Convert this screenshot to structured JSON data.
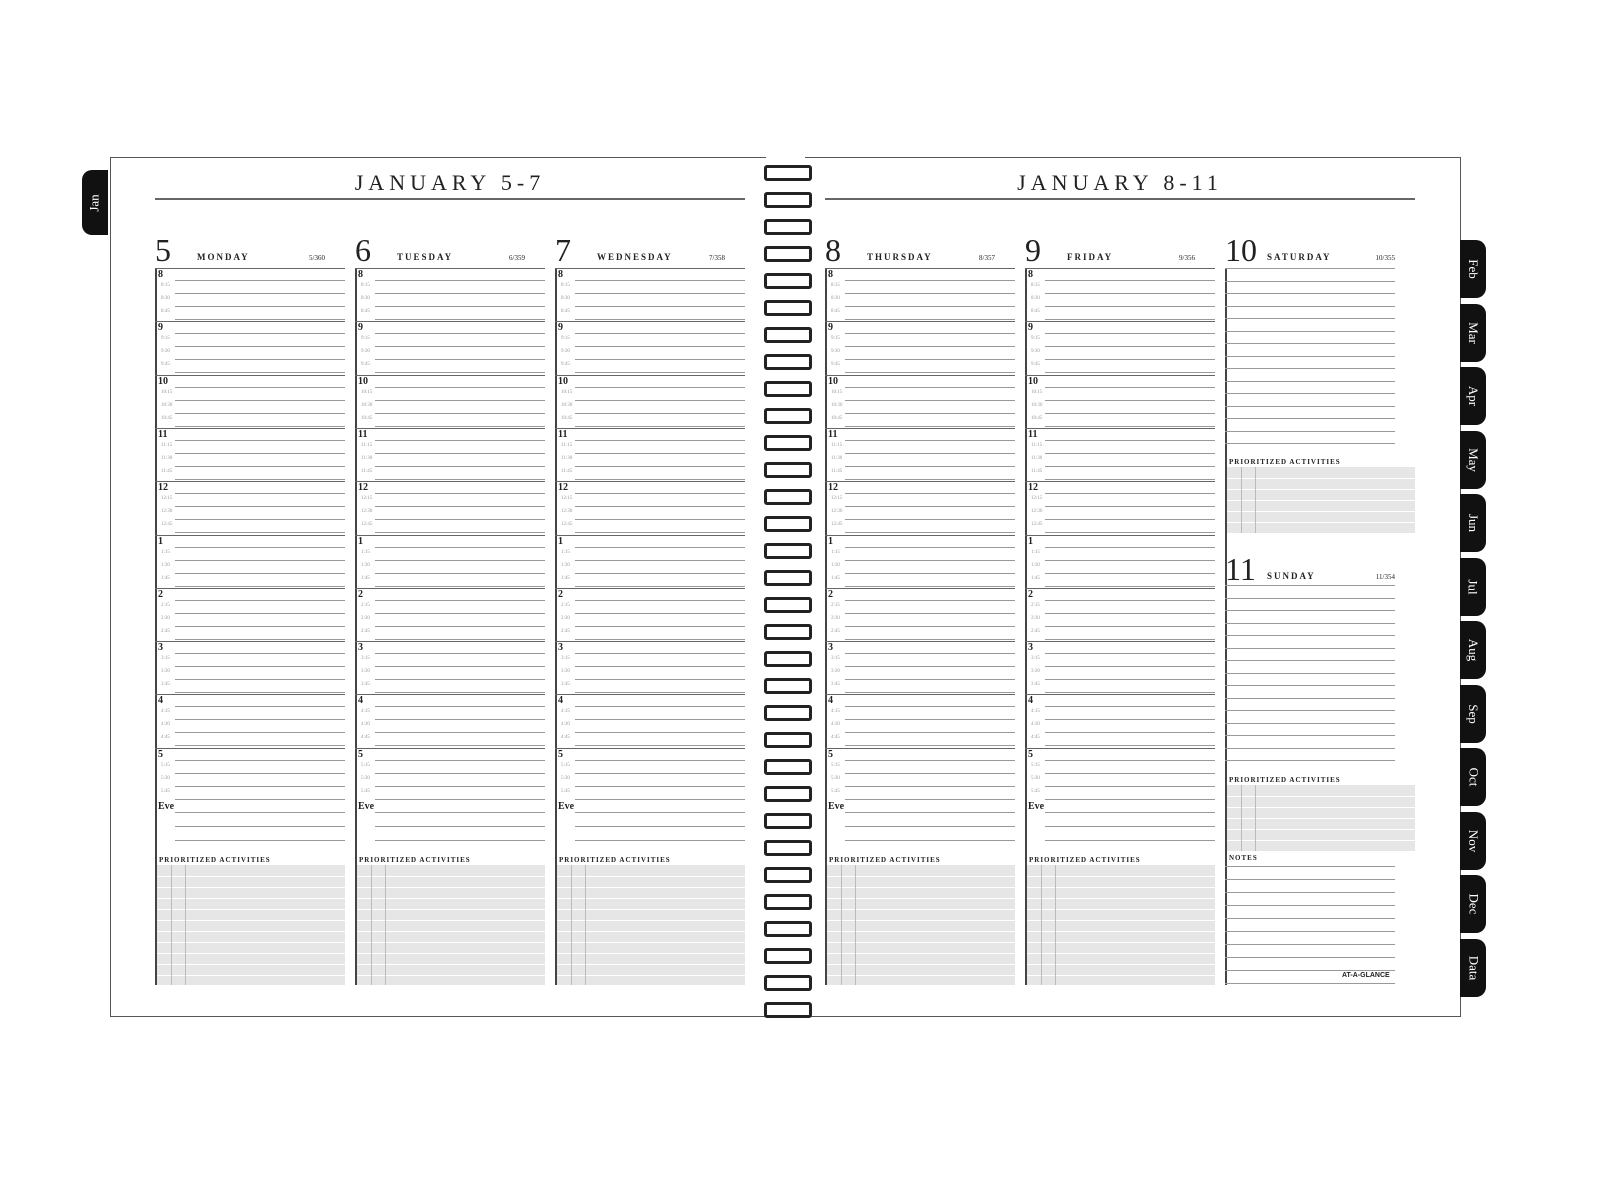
{
  "left_page": {
    "title": "JANUARY 5-7"
  },
  "right_page": {
    "title": "JANUARY 8-11"
  },
  "days": [
    {
      "num": "5",
      "name": "Monday",
      "count": "5/360"
    },
    {
      "num": "6",
      "name": "Tuesday",
      "count": "6/359"
    },
    {
      "num": "7",
      "name": "Wednesday",
      "count": "7/358"
    },
    {
      "num": "8",
      "name": "Thursday",
      "count": "8/357"
    },
    {
      "num": "9",
      "name": "Friday",
      "count": "9/356"
    },
    {
      "num": "10",
      "name": "Saturday",
      "count": "10/355"
    },
    {
      "num": "11",
      "name": "Sunday",
      "count": "11/354"
    }
  ],
  "hours": [
    "8",
    "9",
    "10",
    "11",
    "12",
    "1",
    "2",
    "3",
    "4",
    "5"
  ],
  "quarters": [
    ":15",
    ":30",
    ":45"
  ],
  "evening_label": "Eve",
  "prioritized_label": "PRIORITIZED ACTIVITIES",
  "notes_label": "NOTES",
  "month_tabs_left": [
    "Jan"
  ],
  "month_tabs_right": [
    "Feb",
    "Mar",
    "Apr",
    "May",
    "Jun",
    "Jul",
    "Aug",
    "Sep",
    "Oct",
    "Nov",
    "Dec",
    "Data"
  ],
  "logo": "AT-A-GLANCE"
}
